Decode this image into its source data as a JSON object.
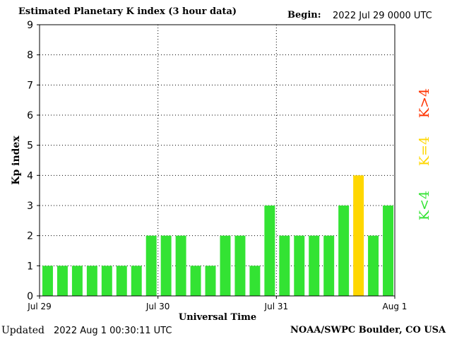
{
  "header": {
    "title": "Estimated Planetary K index (3 hour data)",
    "begin_label": "Begin:",
    "begin_value": "2022 Jul 29 0000 UTC"
  },
  "footer": {
    "updated_label": "Updated",
    "updated_value": "2022 Aug  1 00:30:11 UTC",
    "credit": "NOAA/SWPC Boulder, CO USA"
  },
  "legend": {
    "low": {
      "label": "K<4",
      "color": "#33e333"
    },
    "mid": {
      "label": "K=4",
      "color": "#ffd700"
    },
    "high": {
      "label": "K>4",
      "color": "#ff3300"
    }
  },
  "chart_data": {
    "type": "bar",
    "xlabel": "Universal Time",
    "ylabel": "Kp index",
    "ylim": [
      0,
      9
    ],
    "yticks": [
      0,
      1,
      2,
      3,
      4,
      5,
      6,
      7,
      8,
      9
    ],
    "xticks": [
      {
        "label": "Jul 29",
        "index": 0
      },
      {
        "label": "Jul 30",
        "index": 8
      },
      {
        "label": "Jul 31",
        "index": 16
      },
      {
        "label": "Aug 1",
        "index": 24
      }
    ],
    "grid": true,
    "values": [
      1,
      1,
      1,
      1,
      1,
      1,
      1,
      2,
      2,
      2,
      1,
      1,
      2,
      2,
      1,
      3,
      2,
      2,
      2,
      2,
      3,
      4,
      2,
      3
    ],
    "colors": {
      "below4": "#33e333",
      "equal4": "#ffd700",
      "above4": "#ff3300"
    }
  }
}
